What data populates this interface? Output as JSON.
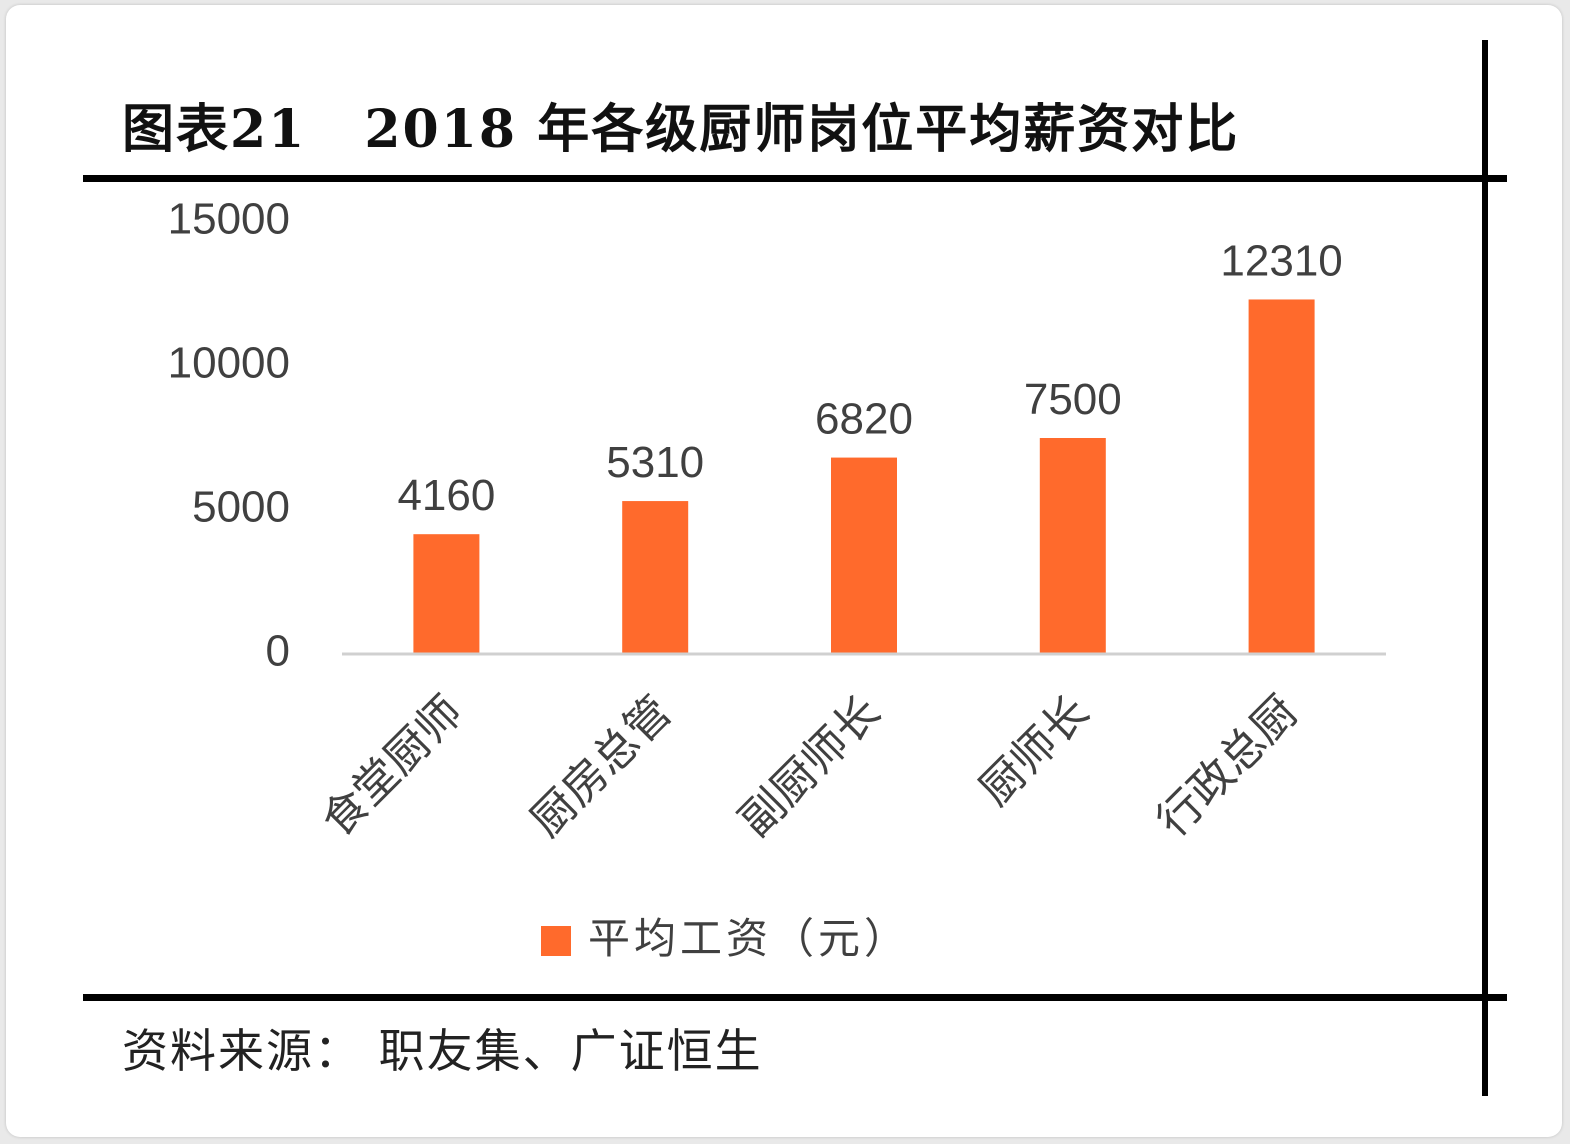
{
  "figure": {
    "title_number": "图表21",
    "title_text": "2018 年各级厨师岗位平均薪资对比",
    "source": "资料来源：  职友集、广证恒生"
  },
  "colors": {
    "bar": "#FF6A2C",
    "axis": "#d0d0d0",
    "text": "#404040",
    "rule": "#000000"
  },
  "chart_data": {
    "type": "bar",
    "categories": [
      "食堂厨师",
      "厨房总管",
      "副厨师长",
      "厨师长",
      "行政总厨"
    ],
    "series": [
      {
        "name": "平均工资（元）",
        "values": [
          4160,
          5310,
          6820,
          7500,
          12310
        ]
      }
    ],
    "y_ticks": [
      "0",
      "5000",
      "10000",
      "15000"
    ],
    "ylim": [
      0,
      15000
    ],
    "data_labels": [
      "4160",
      "5310",
      "6820",
      "7500",
      "12310"
    ],
    "legend_position": "bottom",
    "grid": false
  }
}
